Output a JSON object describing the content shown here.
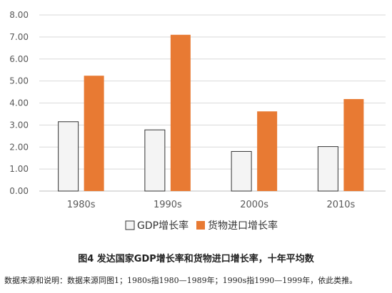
{
  "chart_data": {
    "type": "bar",
    "categories": [
      "1980s",
      "1990s",
      "2000s",
      "2010s"
    ],
    "series": [
      {
        "name": "GDP增长率",
        "values": [
          3.15,
          2.78,
          1.8,
          2.02
        ],
        "color": "#f4f4f4",
        "stroke": "#333333"
      },
      {
        "name": "货物进口增长率",
        "values": [
          5.24,
          7.1,
          3.62,
          4.18
        ],
        "color": "#e87a33"
      }
    ],
    "ylim": [
      0,
      8
    ],
    "yticks": [
      "0.00",
      "1.00",
      "2.00",
      "3.00",
      "4.00",
      "5.00",
      "6.00",
      "7.00",
      "8.00"
    ],
    "grid": true,
    "legend": "bottom"
  },
  "caption": "图4  发达国家GDP增长率和货物进口增长率，十年平均数",
  "source_note": "数据来源和说明：数据来源同图1；1980s指1980—1989年；1990s指1990—1999年，依此类推。"
}
